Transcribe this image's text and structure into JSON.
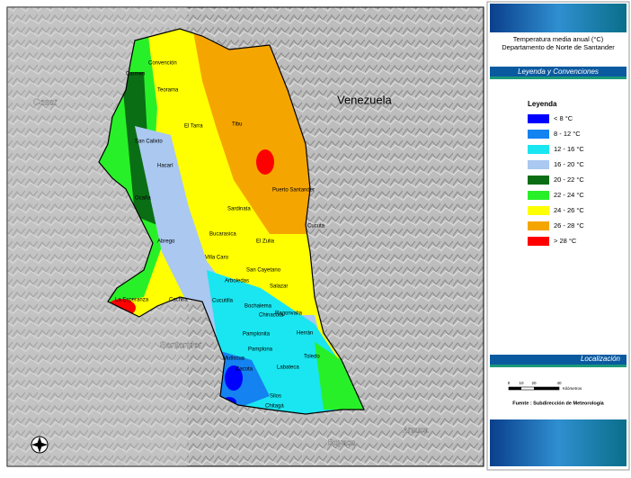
{
  "header": {
    "title": "Temperatura media anual (°C)",
    "subtitle": "Departamento de Norte de Santander"
  },
  "legend_banner": "Leyenda y Convenciones",
  "legend": {
    "title": "Leyenda",
    "items": [
      {
        "label": "< 8 °C",
        "color": "#0000ff"
      },
      {
        "label": "8 - 12 °C",
        "color": "#1482f0"
      },
      {
        "label": "12 - 16 °C",
        "color": "#19e6f0"
      },
      {
        "label": "16 - 20 °C",
        "color": "#aac8f0"
      },
      {
        "label": "20 - 22 °C",
        "color": "#0a6e14"
      },
      {
        "label": "22 - 24 °C",
        "color": "#28f028"
      },
      {
        "label": "24 - 26 °C",
        "color": "#ffff00"
      },
      {
        "label": "26 - 28 °C",
        "color": "#f5a500"
      },
      {
        "label": "> 28 °C",
        "color": "#ff0000"
      }
    ]
  },
  "location_banner": "Localización",
  "scale": {
    "ticks": [
      "0",
      "10",
      "20",
      "40"
    ],
    "unit": "Kilómetros"
  },
  "source": "Fuente : Subdirección de Meteorología",
  "map": {
    "countries": [
      "Venezuela",
      "Cesar",
      "Santander",
      "Boyaca",
      "Arauca"
    ],
    "places": [
      "Convención",
      "Carmen",
      "Teorama",
      "El Tarra",
      "Tibu",
      "San Calixto",
      "Hacarí",
      "Ocaña",
      "Abrego",
      "La Esperanza",
      "Cachira",
      "Sardinata",
      "Puerto Santander",
      "Cucuta",
      "Bucarasica",
      "El Zulia",
      "Villa Caro",
      "San Cayetano",
      "Salazar",
      "Arboledas",
      "Chinacota",
      "Bochalema",
      "Cucutilla",
      "Ragonvalia",
      "Pamplonita",
      "Pamplona",
      "Herrán",
      "Toledo",
      "Mutiscua",
      "Cacota",
      "Labateca",
      "Silos",
      "Chitagá"
    ]
  }
}
